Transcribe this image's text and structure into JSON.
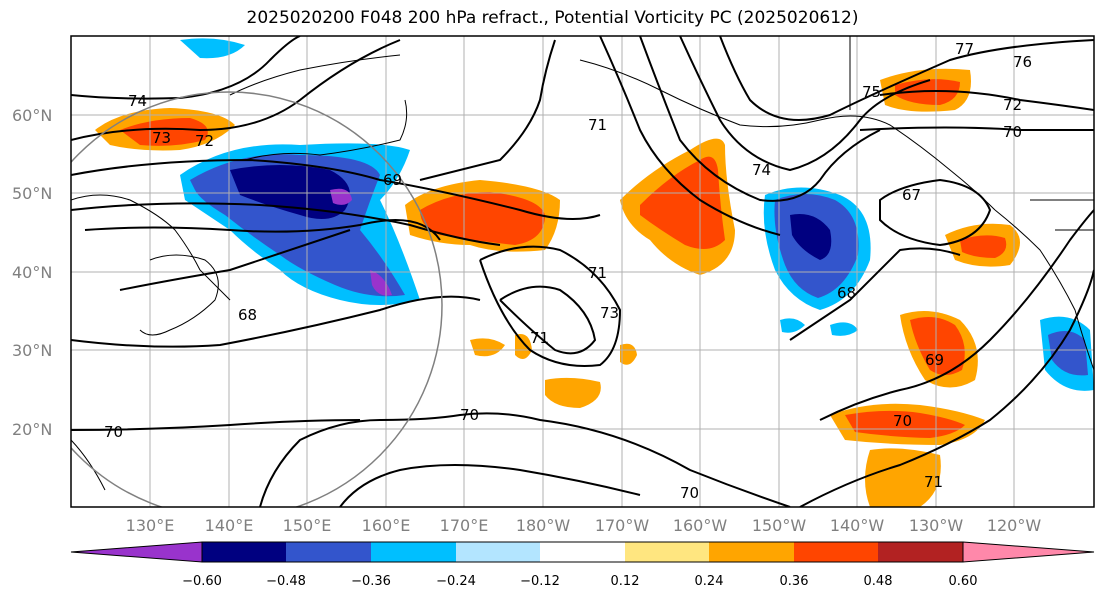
{
  "title": "2025020200 F048 200 hPa refract., Potential Vorticity PC (2025020612)",
  "lat_labels": [
    "60°N",
    "50°N",
    "40°N",
    "30°N",
    "20°N"
  ],
  "lon_labels": [
    "130°E",
    "140°E",
    "150°E",
    "160°E",
    "170°E",
    "180°W",
    "170°W",
    "160°W",
    "150°W",
    "140°W",
    "130°W",
    "120°W"
  ],
  "contour_labels": [
    "74",
    "73",
    "72",
    "69",
    "68",
    "70",
    "71",
    "71",
    "73",
    "71",
    "70",
    "70",
    "74",
    "75",
    "77",
    "76",
    "72",
    "70",
    "67",
    "68",
    "69",
    "70",
    "71"
  ],
  "colorbar": {
    "ticks": [
      "−0.60",
      "−0.48",
      "−0.36",
      "−0.24",
      "−0.12",
      "0.12",
      "0.24",
      "0.36",
      "0.48",
      "0.60"
    ],
    "colors": [
      "#9933cc",
      "#000080",
      "#3355cc",
      "#00bfff",
      "#b3e5ff",
      "#ffffff",
      "#ffe680",
      "#ffa500",
      "#ff4500",
      "#b22222",
      "#ff88aa"
    ]
  }
}
